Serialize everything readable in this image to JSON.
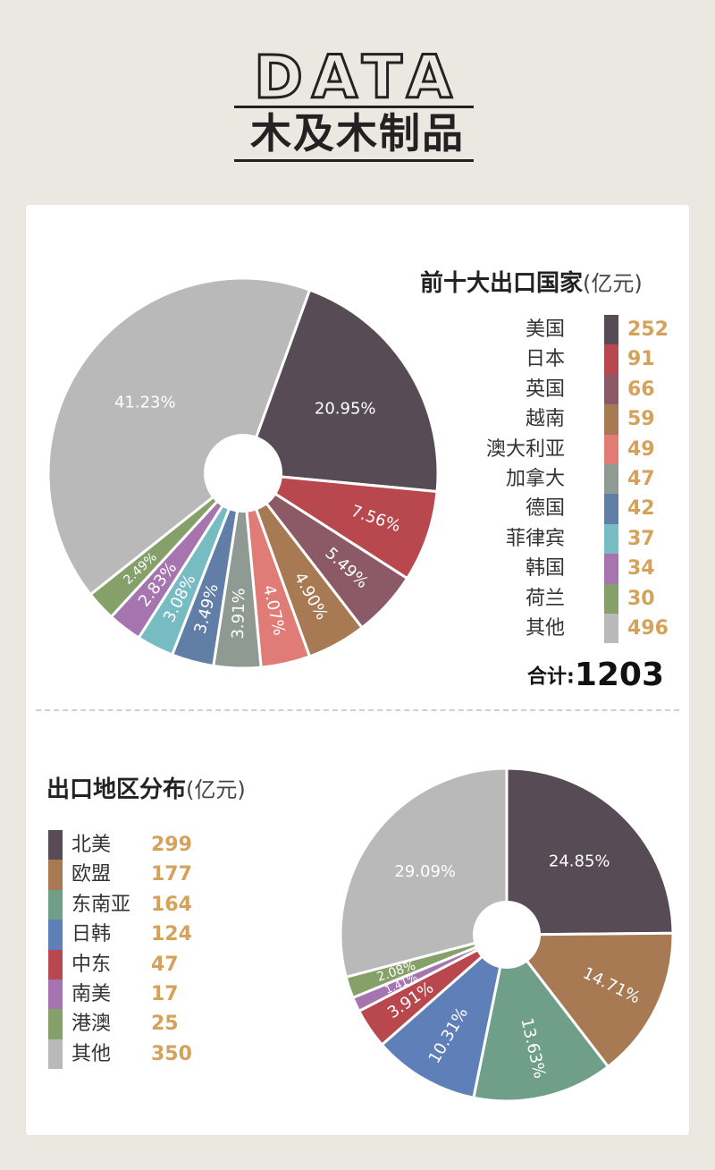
{
  "header": {
    "data_word": "DATA",
    "title": "木及木制品"
  },
  "colors": {
    "value_text": "#d4a25a",
    "card_bg": "#ffffff",
    "page_bg": "#ebe7e1"
  },
  "section1": {
    "title": "前十大出口国家",
    "unit": "(亿元)",
    "total_label": "合计:",
    "total_value": "1203"
  },
  "section2": {
    "title": "出口地区分布",
    "unit": "(亿元)"
  },
  "chart_data": [
    {
      "type": "pie",
      "title": "前十大出口国家(亿元)",
      "donut_hole": true,
      "legend_position": "right",
      "categories": [
        "美国",
        "日本",
        "英国",
        "越南",
        "澳大利亚",
        "加拿大",
        "德国",
        "菲律宾",
        "韩国",
        "荷兰",
        "其他"
      ],
      "values": [
        252,
        91,
        66,
        59,
        49,
        47,
        42,
        37,
        34,
        30,
        496
      ],
      "value_labels": [
        "252",
        "91",
        "66",
        "59",
        "49",
        "47",
        "42",
        "37",
        "34",
        "30",
        "496"
      ],
      "percent_labels": [
        "20.95%",
        "7.56%",
        "5.49%",
        "4.90%",
        "4.07%",
        "3.91%",
        "3.49%",
        "3.08%",
        "2.83%",
        "2.49%",
        "41.23%"
      ],
      "percents": [
        20.95,
        7.56,
        5.49,
        4.9,
        4.07,
        3.91,
        3.49,
        3.08,
        2.83,
        2.49,
        41.23
      ],
      "colors": [
        "#574b55",
        "#b9474e",
        "#8b5a66",
        "#a87a53",
        "#e07b76",
        "#8f9a93",
        "#617ea7",
        "#78bcc3",
        "#a674ae",
        "#86a06a",
        "#b9b9b9"
      ],
      "total": 1203
    },
    {
      "type": "pie",
      "title": "出口地区分布(亿元)",
      "donut_hole": true,
      "legend_position": "left",
      "categories": [
        "北美",
        "欧盟",
        "东南亚",
        "日韩",
        "中东",
        "南美",
        "港澳",
        "其他"
      ],
      "values": [
        299,
        177,
        164,
        124,
        47,
        17,
        25,
        350
      ],
      "value_labels": [
        "299",
        "177",
        "164",
        "124",
        "47",
        "17",
        "25",
        "350"
      ],
      "percent_labels": [
        "24.85%",
        "14.71%",
        "13.63%",
        "10.31%",
        "3.91%",
        "1.41%",
        "2.08%",
        "29.09%"
      ],
      "percents": [
        24.85,
        14.71,
        13.63,
        10.31,
        3.91,
        1.41,
        2.08,
        29.09
      ],
      "colors": [
        "#574b55",
        "#a87a53",
        "#6f9f89",
        "#5f7fb8",
        "#b9474e",
        "#a674ae",
        "#86a06a",
        "#b9b9b9"
      ]
    }
  ]
}
